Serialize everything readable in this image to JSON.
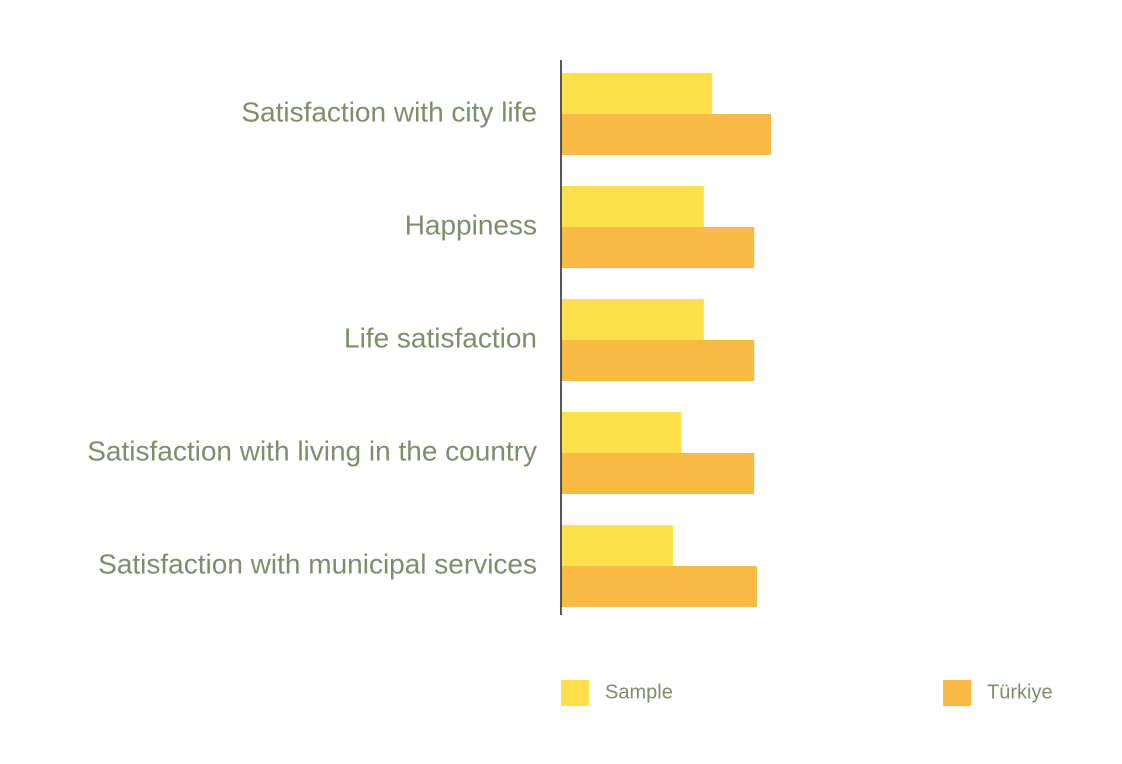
{
  "chart_data": {
    "type": "bar",
    "orientation": "horizontal",
    "categories": [
      "Satisfaction with city life",
      "Happiness",
      "Life satisfaction",
      "Satisfaction with living in the country",
      "Satisfaction with municipal services"
    ],
    "series": [
      {
        "name": "Sample",
        "color": "#FEE04A",
        "values": [
          5.4,
          5.1,
          5.1,
          4.3,
          4.0
        ]
      },
      {
        "name": "Türkiye",
        "color": "#F9BA45",
        "values": [
          7.5,
          6.9,
          6.9,
          6.9,
          7.0
        ]
      }
    ],
    "xlim": [
      0,
      20
    ],
    "x_axis_shown": false,
    "grid": false,
    "legend_position": "bottom",
    "label_color": "#7E8E6A"
  }
}
